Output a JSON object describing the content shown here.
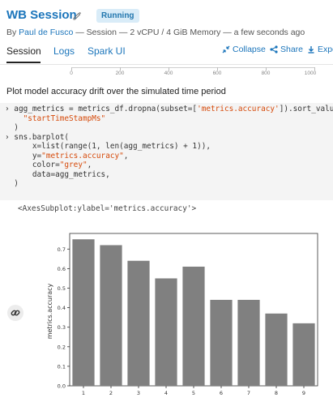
{
  "session": {
    "title": "WB Session",
    "status": "Running",
    "by_prefix": "By ",
    "author": "Paul de Fusco",
    "details": " — Session — 2 vCPU / 4 GiB Memory — a few seconds ago"
  },
  "tabs": [
    {
      "label": "Session",
      "active": true
    },
    {
      "label": "Logs",
      "active": false
    },
    {
      "label": "Spark UI",
      "active": false
    }
  ],
  "actions": {
    "collapse": "Collapse",
    "share": "Share",
    "export": "Expo"
  },
  "scrubber": {
    "labels": [
      "0",
      "200",
      "400",
      "600",
      "800",
      "1000"
    ]
  },
  "markdown": {
    "text": "Plot model accuracy drift over the simulated time period"
  },
  "code": {
    "line1_prefix": "agg_metrics = metrics_df.dropna(subset=[",
    "line1_str": "'metrics.accuracy'",
    "line1_suffix": "]).sort_values(",
    "line2_str": "\"startTimeStampMs\"",
    "line3": ")",
    "line4": "sns.barplot(",
    "line5": "    x=list(range(1, len(agg_metrics) + 1)),",
    "line6_prefix": "    y=",
    "line6_str": "\"metrics.accuracy\"",
    "line6_suffix": ",",
    "line7_prefix": "    color=",
    "line7_str": "\"grey\"",
    "line7_suffix": ",",
    "line8": "    data=agg_metrics,",
    "line9": ")"
  },
  "output": {
    "text": "<AxesSubplot:ylabel='metrics.accuracy'>"
  },
  "colors": {
    "bar": "#808080",
    "accent": "#1b75bb",
    "code_string": "#d64a0a"
  },
  "chart_data": {
    "type": "bar",
    "categories": [
      "1",
      "2",
      "3",
      "4",
      "5",
      "6",
      "7",
      "8",
      "9"
    ],
    "values": [
      0.75,
      0.72,
      0.64,
      0.55,
      0.61,
      0.44,
      0.44,
      0.37,
      0.32
    ],
    "ylabel": "metrics.accuracy",
    "xlabel": "",
    "ylim": [
      0.0,
      0.78
    ],
    "yticks": [
      "0.0",
      "0.1",
      "0.2",
      "0.3",
      "0.4",
      "0.5",
      "0.6",
      "0.7"
    ],
    "color": "#808080",
    "grid": false
  }
}
